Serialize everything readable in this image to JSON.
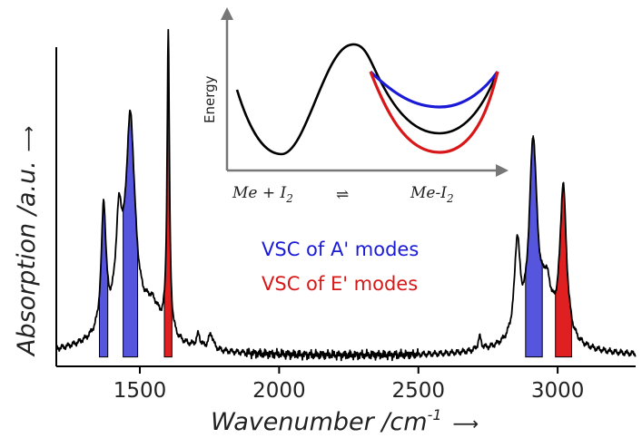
{
  "chart_data": {
    "type": "line",
    "title": "",
    "xlabel": "Wavenumber /cm",
    "xlabel_superscript": "-1",
    "xlabel_arrow": "⟶",
    "ylabel": "Absorption /a.u.",
    "ylabel_arrow": "⟶",
    "xlim": [
      1200,
      3280
    ],
    "ylim": [
      -0.02,
      1.0
    ],
    "xticks": [
      {
        "value": 1500,
        "label": "1500"
      },
      {
        "value": 2000,
        "label": "2000"
      },
      {
        "value": 2500,
        "label": "2500"
      },
      {
        "value": 3000,
        "label": "3000"
      }
    ],
    "spectrum": {
      "color": "#000000",
      "baseline": 0.01,
      "peaks": [
        {
          "center": 1370,
          "height": 0.4,
          "width": 10
        },
        {
          "center": 1425,
          "height": 0.3,
          "width": 14
        },
        {
          "center": 1466,
          "height": 0.66,
          "width": 20
        },
        {
          "center": 1545,
          "height": 0.09,
          "width": 35
        },
        {
          "center": 1602,
          "height": 0.96,
          "width": 5
        },
        {
          "center": 1460,
          "height": 0.07,
          "width": 160
        },
        {
          "center": 1710,
          "height": 0.04,
          "width": 8
        },
        {
          "center": 1755,
          "height": 0.05,
          "width": 10
        },
        {
          "center": 2720,
          "height": 0.04,
          "width": 7
        },
        {
          "center": 2855,
          "height": 0.3,
          "width": 12
        },
        {
          "center": 2912,
          "height": 0.62,
          "width": 17
        },
        {
          "center": 2960,
          "height": 0.15,
          "width": 22
        },
        {
          "center": 3020,
          "height": 0.49,
          "width": 14
        },
        {
          "center": 2930,
          "height": 0.04,
          "width": 150
        }
      ]
    },
    "shaded_bands": [
      {
        "group": "A'",
        "color": "#5555dd",
        "x_start": 1355,
        "x_end": 1385
      },
      {
        "group": "A'",
        "color": "#5555dd",
        "x_start": 1440,
        "x_end": 1492
      },
      {
        "group": "E'",
        "color": "#e02020",
        "x_start": 1588,
        "x_end": 1615
      },
      {
        "group": "A'",
        "color": "#5555dd",
        "x_start": 2885,
        "x_end": 2945
      },
      {
        "group": "E'",
        "color": "#e02020",
        "x_start": 2992,
        "x_end": 3050
      }
    ],
    "legend": {
      "placement": "center",
      "entries": [
        {
          "label": "VSC of A' modes",
          "color": "#1a1ad6"
        },
        {
          "label": "VSC of E' modes",
          "color": "#d81818"
        }
      ]
    },
    "inset": {
      "type": "potential-energy-diagram",
      "ylabel": "Energy",
      "reactant_label": "Me + I",
      "reactant_subscript": "2",
      "equilibrium_symbol": "⇌",
      "product_label": "Me-I",
      "product_subscript": "2",
      "curves": [
        {
          "name": "ground",
          "color": "#000000"
        },
        {
          "name": "A' coupled",
          "color": "#1a1ad6"
        },
        {
          "name": "E' coupled",
          "color": "#d81818"
        }
      ]
    }
  }
}
